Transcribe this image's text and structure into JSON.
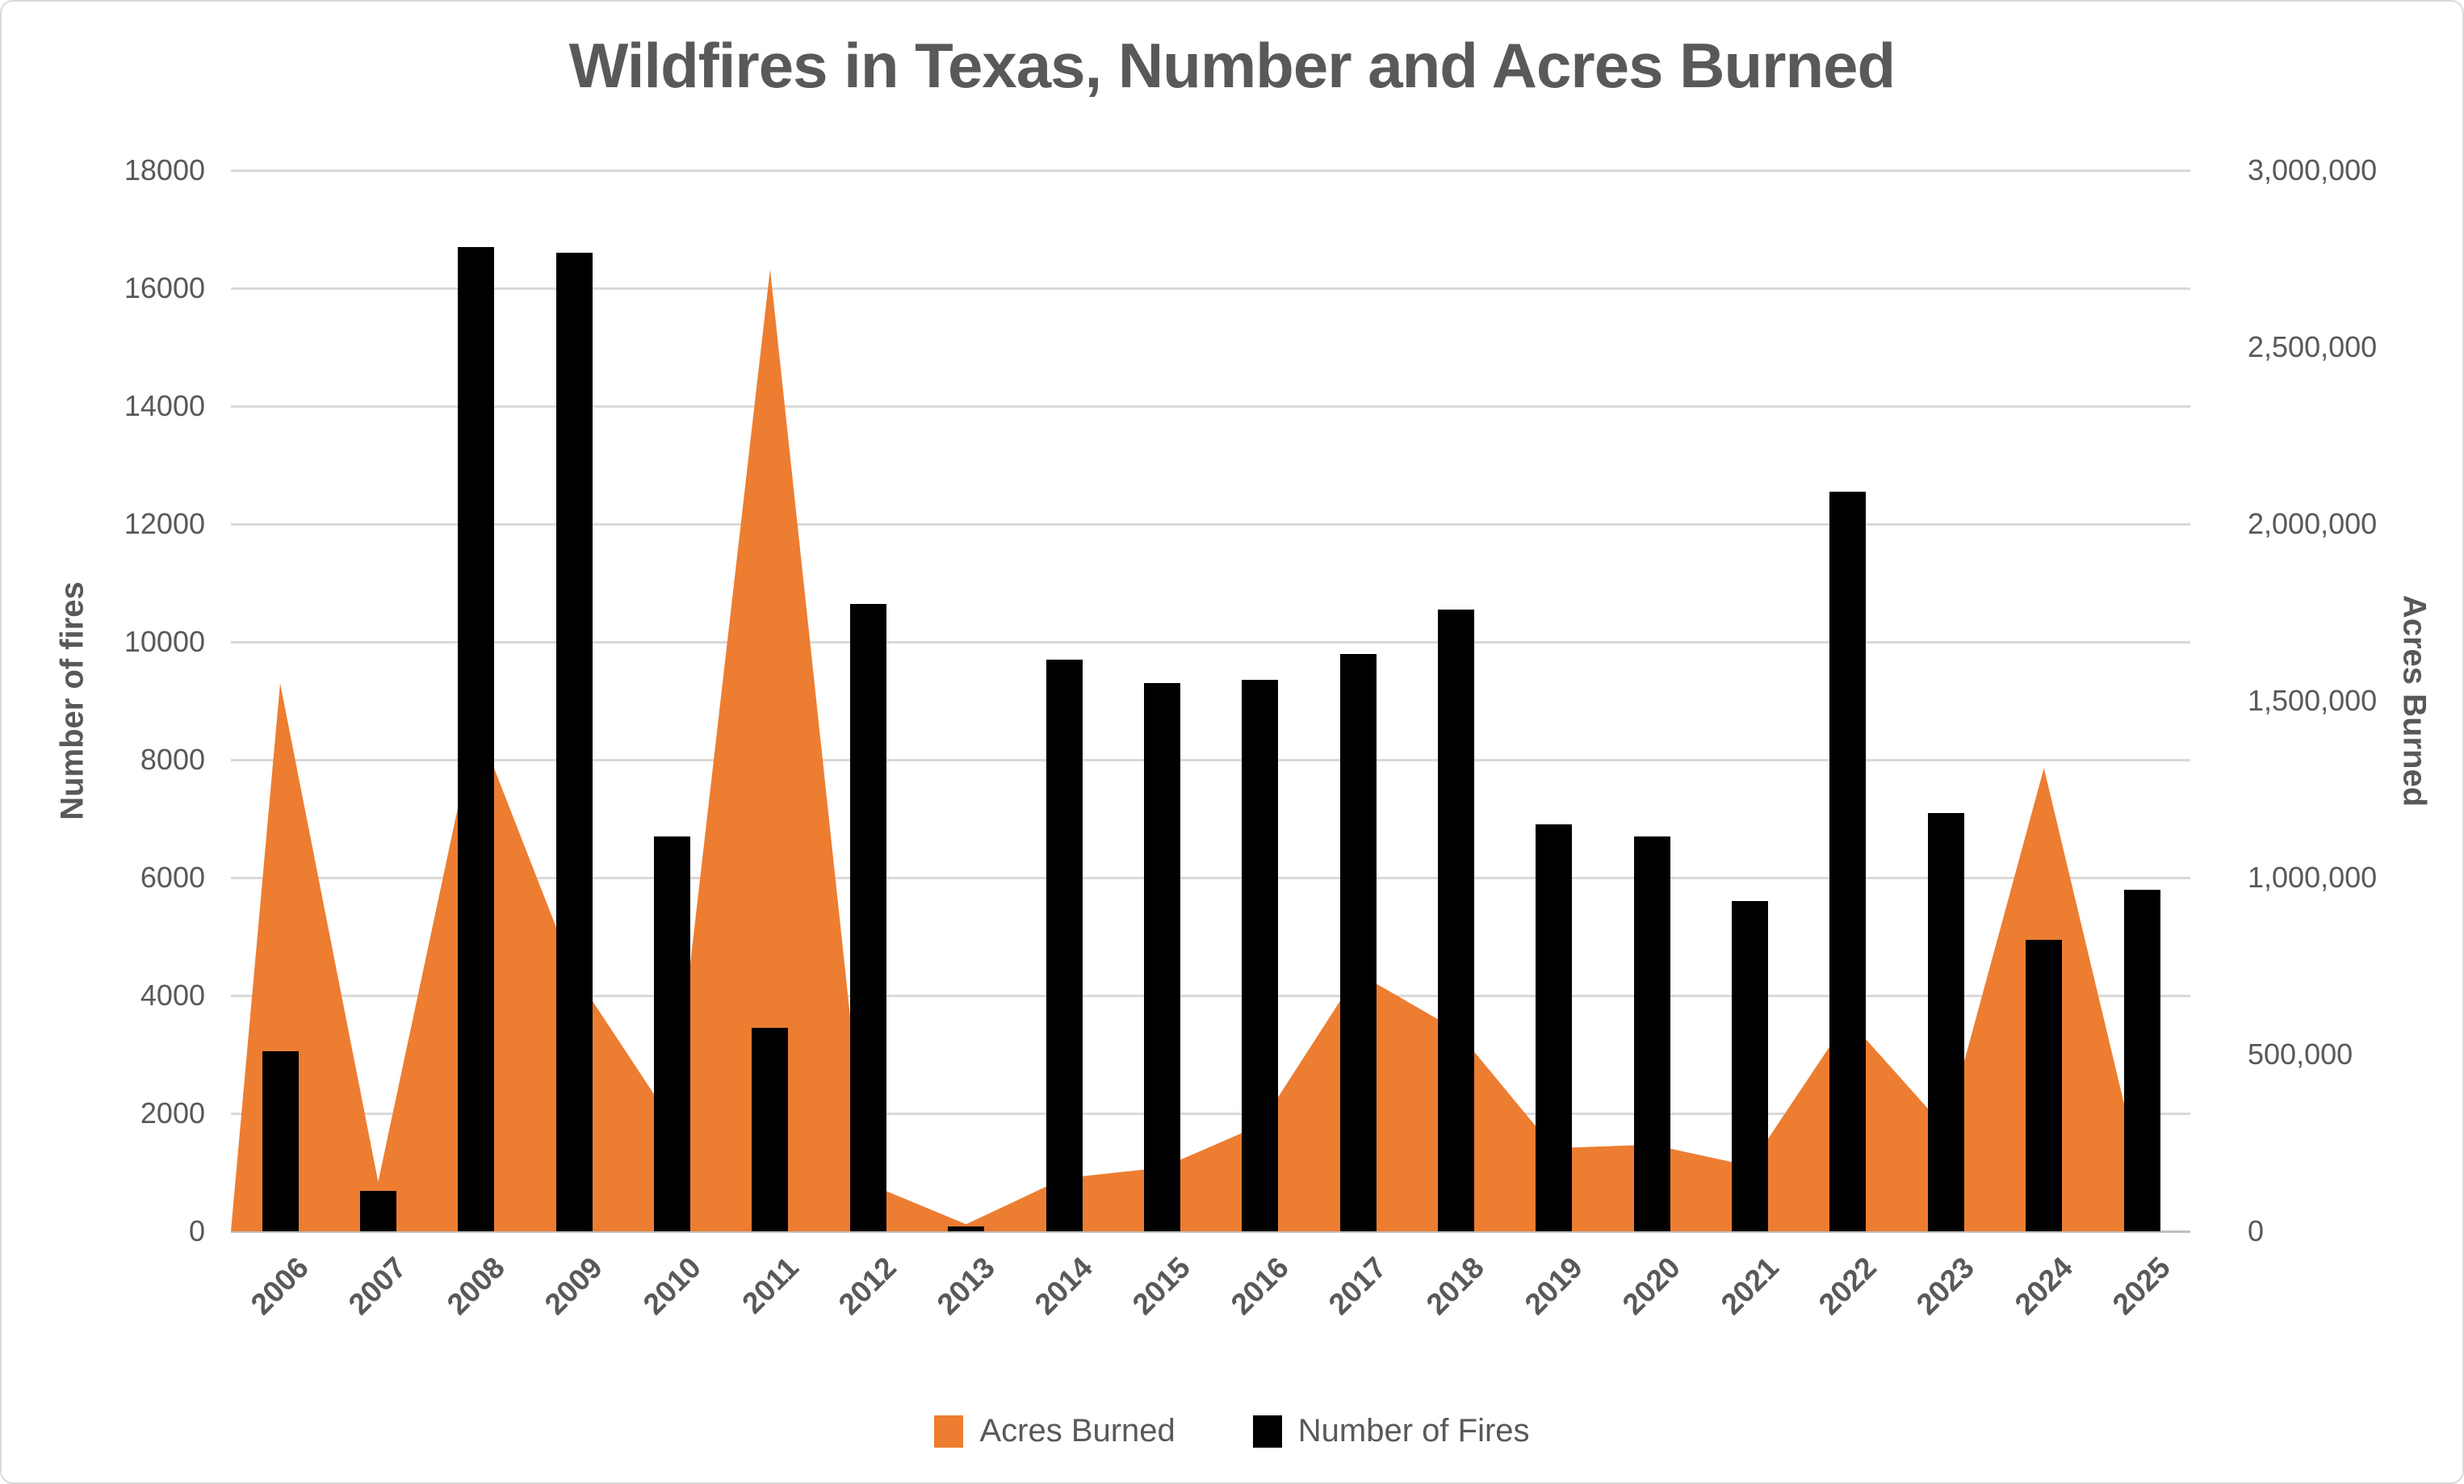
{
  "chart_data": {
    "type": "combo",
    "title": "Wildfires in Texas, Number and Acres Burned",
    "categories": [
      "2006",
      "2007",
      "2008",
      "2009",
      "2010",
      "2011",
      "2012",
      "2013",
      "2014",
      "2015",
      "2016",
      "2017",
      "2018",
      "2019",
      "2020",
      "2021",
      "2022",
      "2023",
      "2024",
      "2025"
    ],
    "series": [
      {
        "name": "Acres Burned",
        "type": "area",
        "axis": "right",
        "color": "#ED7D31",
        "values": [
          1550000,
          140000,
          1440000,
          730000,
          310000,
          2720000,
          135000,
          20000,
          150000,
          180000,
          300000,
          730000,
          570000,
          235000,
          245000,
          185000,
          600000,
          290000,
          1310000,
          150000
        ]
      },
      {
        "name": "Number of Fires",
        "type": "bar",
        "axis": "left",
        "color": "#000000",
        "values": [
          3050,
          690,
          16700,
          16600,
          6700,
          3450,
          10650,
          80,
          9700,
          9300,
          9350,
          9800,
          10550,
          6900,
          6700,
          5600,
          12550,
          7100,
          4950,
          5800
        ]
      }
    ],
    "left_axis": {
      "title": "Number of fires",
      "min": 0,
      "max": 18000,
      "step": 2000,
      "tick_labels": [
        "18000",
        "16000",
        "14000",
        "12000",
        "10000",
        "8000",
        "6000",
        "4000",
        "2000",
        "0"
      ]
    },
    "right_axis": {
      "title": "Acres Burned",
      "min": 0,
      "max": 3000000,
      "step": 500000,
      "tick_labels": [
        "3,000,000",
        "2,500,000",
        "2,000,000",
        "1,500,000",
        "1,000,000",
        "500,000",
        "0"
      ]
    },
    "legend_position": "bottom",
    "grid": true
  },
  "colors": {
    "area": "#ED7D31",
    "bar": "#000000",
    "text": "#595959",
    "gridline": "#D9D9D9",
    "axis_line": "#BFBFBF",
    "background": "#FFFFFF"
  }
}
